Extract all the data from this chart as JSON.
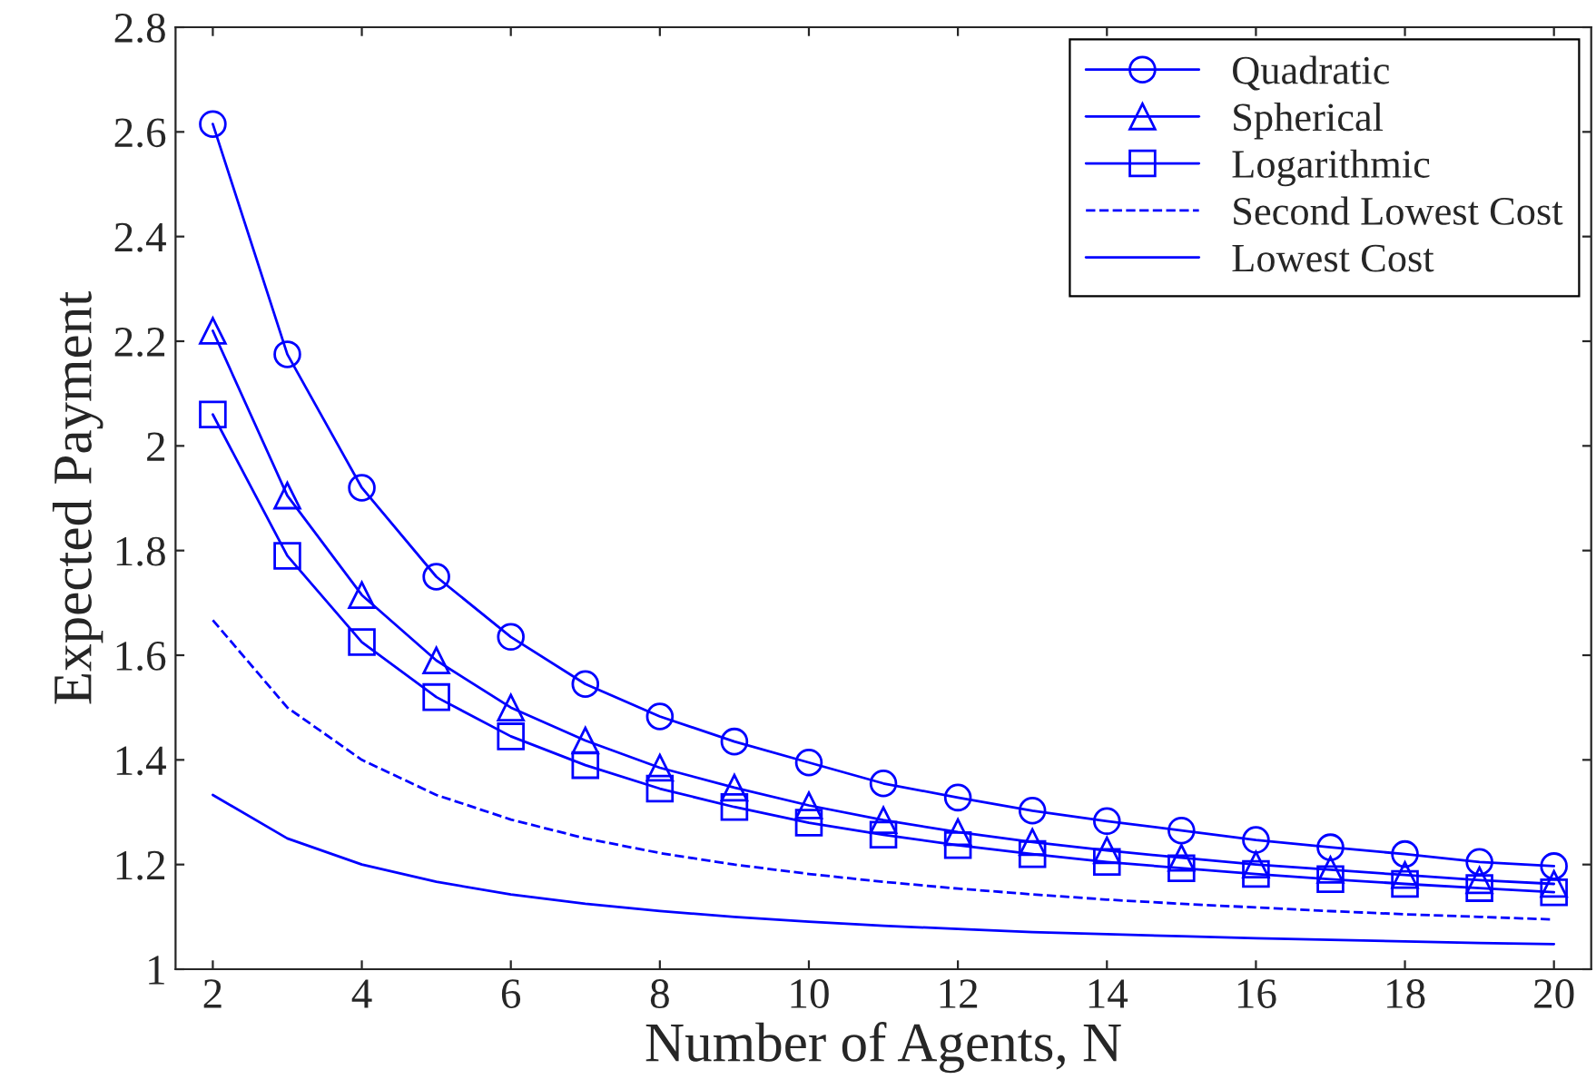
{
  "chart_data": {
    "type": "line",
    "xlabel": "Number of Agents, N",
    "ylabel": "Expected Payment",
    "x": [
      2,
      3,
      4,
      5,
      6,
      7,
      8,
      9,
      10,
      11,
      12,
      13,
      14,
      15,
      16,
      17,
      18,
      19,
      20
    ],
    "series": [
      {
        "name": "Quadratic",
        "color": "#0000ff",
        "marker": "circle",
        "line_style": "solid",
        "values": [
          2.615,
          2.175,
          1.92,
          1.75,
          1.635,
          1.545,
          1.483,
          1.435,
          1.395,
          1.355,
          1.328,
          1.303,
          1.283,
          1.265,
          1.247,
          1.233,
          1.22,
          1.205,
          1.197
        ]
      },
      {
        "name": "Spherical",
        "color": "#0000ff",
        "marker": "triangle",
        "line_style": "solid",
        "values": [
          2.22,
          1.905,
          1.715,
          1.59,
          1.5,
          1.437,
          1.385,
          1.347,
          1.313,
          1.285,
          1.262,
          1.243,
          1.227,
          1.213,
          1.2,
          1.19,
          1.18,
          1.17,
          1.163
        ]
      },
      {
        "name": "Logarithmic",
        "color": "#0000ff",
        "marker": "square",
        "line_style": "solid",
        "values": [
          2.06,
          1.79,
          1.625,
          1.52,
          1.445,
          1.39,
          1.345,
          1.31,
          1.28,
          1.257,
          1.237,
          1.22,
          1.205,
          1.193,
          1.182,
          1.172,
          1.163,
          1.155,
          1.147
        ]
      },
      {
        "name": "Second Lowest Cost",
        "color": "#0000ff",
        "marker": "none",
        "line_style": "dashed",
        "values": [
          1.667,
          1.5,
          1.4,
          1.333,
          1.286,
          1.25,
          1.222,
          1.2,
          1.182,
          1.167,
          1.154,
          1.143,
          1.133,
          1.125,
          1.118,
          1.111,
          1.105,
          1.1,
          1.095
        ]
      },
      {
        "name": "Lowest Cost",
        "color": "#0000ff",
        "marker": "none",
        "line_style": "solid",
        "values": [
          1.333,
          1.25,
          1.2,
          1.167,
          1.143,
          1.125,
          1.111,
          1.1,
          1.091,
          1.083,
          1.077,
          1.071,
          1.067,
          1.063,
          1.059,
          1.056,
          1.053,
          1.05,
          1.048
        ]
      }
    ],
    "xlim": [
      1.5,
      20.5
    ],
    "xticks": [
      2,
      4,
      6,
      8,
      10,
      12,
      14,
      16,
      18,
      20
    ],
    "ylim": [
      1,
      2.8
    ],
    "yticks": [
      1,
      1.2,
      1.4,
      1.6,
      1.8,
      2,
      2.2,
      2.4,
      2.6,
      2.8
    ],
    "grid": false,
    "legend": "top right"
  }
}
